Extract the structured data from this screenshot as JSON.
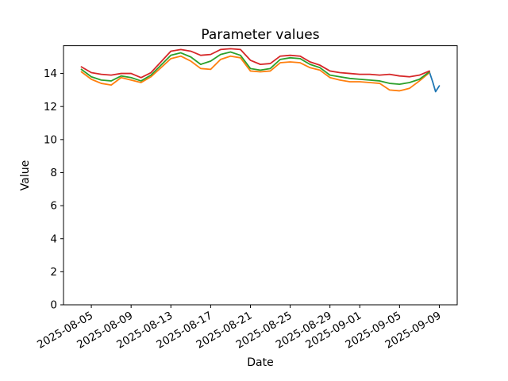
{
  "chart_data": {
    "type": "line",
    "title": "Parameter values",
    "xlabel": "Date",
    "ylabel": "Value",
    "grid": false,
    "legend": "none",
    "background": "#ffffff",
    "spine_color": "#000000",
    "ylim": [
      0,
      15.68
    ],
    "y_ticks": [
      0,
      2,
      4,
      6,
      8,
      10,
      12,
      14
    ],
    "x_start": "2025-08-04",
    "xlim_days": [
      -1.8,
      37.8
    ],
    "x_tick_labels": [
      "2025-08-05",
      "2025-08-09",
      "2025-08-13",
      "2025-08-17",
      "2025-08-21",
      "2025-08-25",
      "2025-08-29",
      "2025-09-01",
      "2025-09-05",
      "2025-09-09"
    ],
    "dates": [
      "2025-08-04",
      "2025-08-05",
      "2025-08-06",
      "2025-08-07",
      "2025-08-08",
      "2025-08-09",
      "2025-08-10",
      "2025-08-11",
      "2025-08-12",
      "2025-08-13",
      "2025-08-14",
      "2025-08-15",
      "2025-08-16",
      "2025-08-17",
      "2025-08-18",
      "2025-08-19",
      "2025-08-20",
      "2025-08-21",
      "2025-08-22",
      "2025-08-23",
      "2025-08-24",
      "2025-08-25",
      "2025-08-26",
      "2025-08-27",
      "2025-08-28",
      "2025-08-29",
      "2025-08-30",
      "2025-08-31",
      "2025-09-01",
      "2025-09-02",
      "2025-09-03",
      "2025-09-04",
      "2025-09-05",
      "2025-09-06",
      "2025-09-07",
      "2025-09-08"
    ],
    "series": [
      {
        "name": "series-blue",
        "color": "#1f77b4",
        "x": [
          "2025-09-08T00:00",
          "2025-09-08T08:00",
          "2025-09-08T15:00",
          "2025-09-09T00:00"
        ],
        "values": [
          14.1,
          13.5,
          12.9,
          13.25
        ]
      },
      {
        "name": "series-orange",
        "color": "#ff7f0e",
        "values": [
          14.1,
          13.65,
          13.4,
          13.3,
          13.75,
          13.6,
          13.45,
          13.8,
          14.35,
          14.9,
          15.05,
          14.75,
          14.3,
          14.25,
          14.85,
          15.05,
          14.95,
          14.15,
          14.1,
          14.15,
          14.65,
          14.7,
          14.65,
          14.35,
          14.2,
          13.75,
          13.6,
          13.5,
          13.5,
          13.45,
          13.4,
          13.0,
          12.95,
          13.1,
          13.55,
          14.05
        ]
      },
      {
        "name": "series-green",
        "color": "#2ca02c",
        "values": [
          14.25,
          13.8,
          13.6,
          13.55,
          13.85,
          13.75,
          13.55,
          13.9,
          14.5,
          15.1,
          15.25,
          15.0,
          14.55,
          14.75,
          15.15,
          15.3,
          15.1,
          14.3,
          14.2,
          14.3,
          14.85,
          14.95,
          14.9,
          14.55,
          14.35,
          13.9,
          13.8,
          13.7,
          13.65,
          13.6,
          13.55,
          13.4,
          13.35,
          13.45,
          13.65,
          14.1
        ]
      },
      {
        "name": "series-red",
        "color": "#d62728",
        "values": [
          14.4,
          14.05,
          13.95,
          13.9,
          14.0,
          14.0,
          13.75,
          14.05,
          14.7,
          15.35,
          15.45,
          15.35,
          15.1,
          15.15,
          15.45,
          15.5,
          15.45,
          14.8,
          14.55,
          14.6,
          15.05,
          15.1,
          15.05,
          14.7,
          14.5,
          14.15,
          14.05,
          14.0,
          13.95,
          13.95,
          13.9,
          13.95,
          13.85,
          13.8,
          13.9,
          14.15
        ]
      }
    ]
  }
}
